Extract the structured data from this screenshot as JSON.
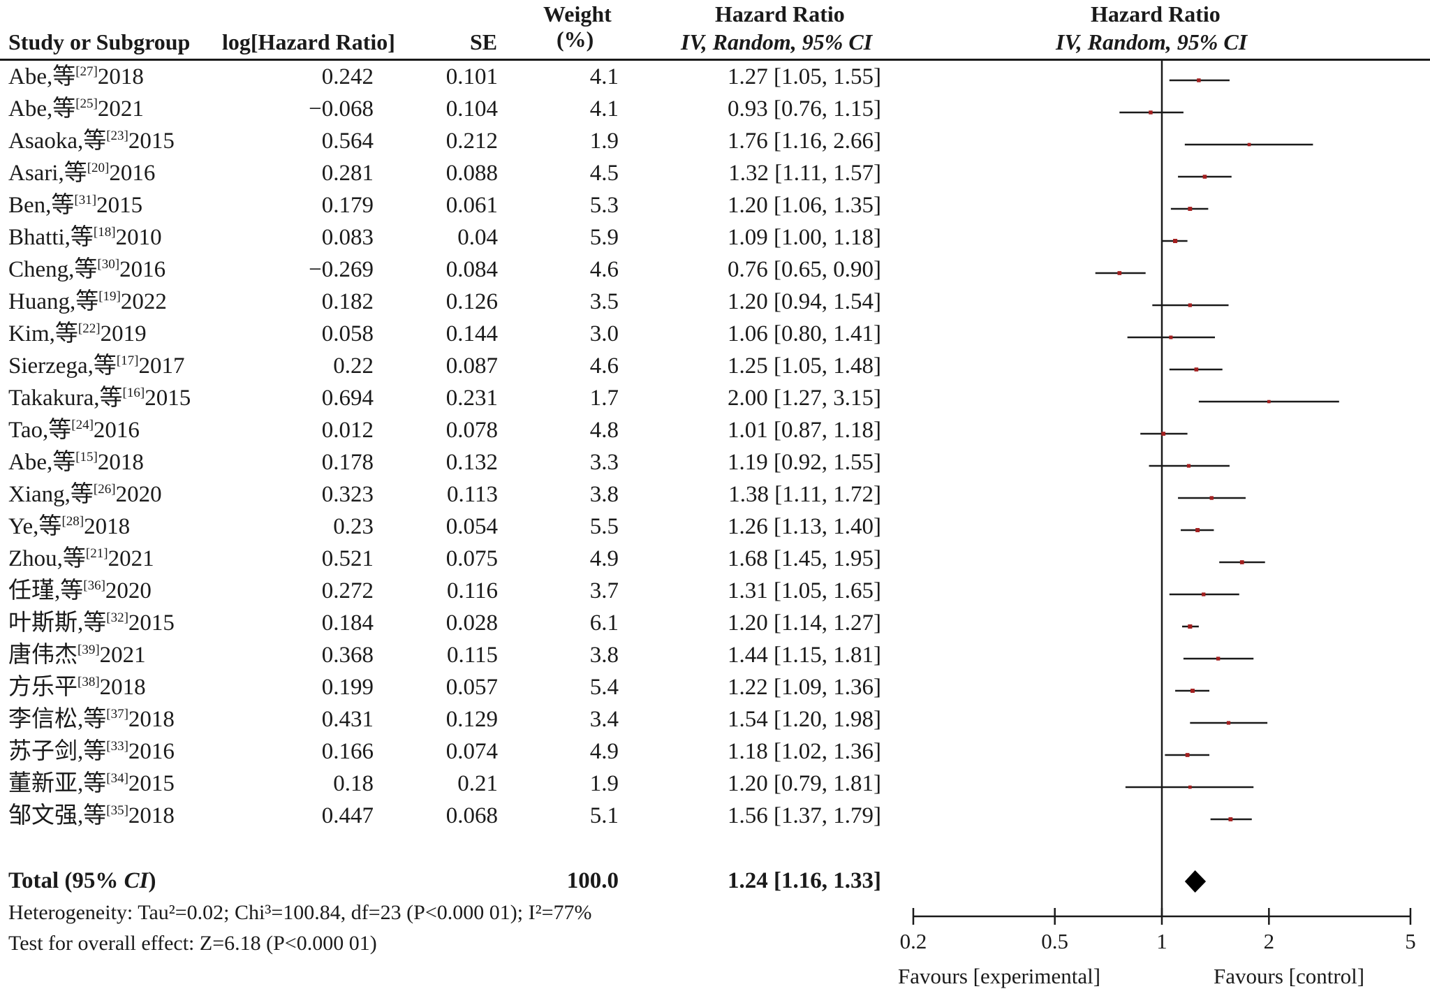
{
  "headers": {
    "study": "Study or Subgroup",
    "log_hr": "log[Hazard Ratio]",
    "se": "SE",
    "weight_line1": "Weight",
    "weight_line2": "(%)",
    "hr_line1": "Hazard Ratio",
    "hr_line2": "IV, Random, 95% CI",
    "plot_line1": "Hazard Ratio",
    "plot_line2": "IV, Random, 95% CI"
  },
  "studies": [
    {
      "name": "Abe,等",
      "ref": "[27]",
      "year": "2018",
      "log_hr": "0.242",
      "se": "0.101",
      "weight": "4.1",
      "hr_ci": "1.27 [1.05, 1.55]",
      "hr": 1.27,
      "lo": 1.05,
      "hi": 1.55
    },
    {
      "name": "Abe,等",
      "ref": "[25]",
      "year": "2021",
      "log_hr": "−0.068",
      "se": "0.104",
      "weight": "4.1",
      "hr_ci": "0.93 [0.76, 1.15]",
      "hr": 0.93,
      "lo": 0.76,
      "hi": 1.15
    },
    {
      "name": "Asaoka,等",
      "ref": "[23]",
      "year": "2015",
      "log_hr": "0.564",
      "se": "0.212",
      "weight": "1.9",
      "hr_ci": "1.76 [1.16, 2.66]",
      "hr": 1.76,
      "lo": 1.16,
      "hi": 2.66
    },
    {
      "name": "Asari,等",
      "ref": "[20]",
      "year": "2016",
      "log_hr": "0.281",
      "se": "0.088",
      "weight": "4.5",
      "hr_ci": "1.32 [1.11, 1.57]",
      "hr": 1.32,
      "lo": 1.11,
      "hi": 1.57
    },
    {
      "name": "Ben,等",
      "ref": "[31]",
      "year": "2015",
      "log_hr": "0.179",
      "se": "0.061",
      "weight": "5.3",
      "hr_ci": "1.20 [1.06, 1.35]",
      "hr": 1.2,
      "lo": 1.06,
      "hi": 1.35
    },
    {
      "name": "Bhatti,等",
      "ref": "[18]",
      "year": "2010",
      "log_hr": "0.083",
      "se": "0.04",
      "weight": "5.9",
      "hr_ci": "1.09 [1.00, 1.18]",
      "hr": 1.09,
      "lo": 1.0,
      "hi": 1.18
    },
    {
      "name": "Cheng,等",
      "ref": "[30]",
      "year": "2016",
      "log_hr": "−0.269",
      "se": "0.084",
      "weight": "4.6",
      "hr_ci": "0.76 [0.65, 0.90]",
      "hr": 0.76,
      "lo": 0.65,
      "hi": 0.9
    },
    {
      "name": "Huang,等",
      "ref": "[19]",
      "year": "2022",
      "log_hr": "0.182",
      "se": "0.126",
      "weight": "3.5",
      "hr_ci": "1.20 [0.94, 1.54]",
      "hr": 1.2,
      "lo": 0.94,
      "hi": 1.54
    },
    {
      "name": "Kim,等",
      "ref": "[22]",
      "year": "2019",
      "log_hr": "0.058",
      "se": "0.144",
      "weight": "3.0",
      "hr_ci": "1.06 [0.80, 1.41]",
      "hr": 1.06,
      "lo": 0.8,
      "hi": 1.41
    },
    {
      "name": "Sierzega,等",
      "ref": "[17]",
      "year": "2017",
      "log_hr": "0.22",
      "se": "0.087",
      "weight": "4.6",
      "hr_ci": "1.25 [1.05, 1.48]",
      "hr": 1.25,
      "lo": 1.05,
      "hi": 1.48
    },
    {
      "name": "Takakura,等",
      "ref": "[16]",
      "year": "2015",
      "log_hr": "0.694",
      "se": "0.231",
      "weight": "1.7",
      "hr_ci": "2.00 [1.27, 3.15]",
      "hr": 2.0,
      "lo": 1.27,
      "hi": 3.15
    },
    {
      "name": "Tao,等",
      "ref": "[24]",
      "year": "2016",
      "log_hr": "0.012",
      "se": "0.078",
      "weight": "4.8",
      "hr_ci": "1.01 [0.87, 1.18]",
      "hr": 1.01,
      "lo": 0.87,
      "hi": 1.18
    },
    {
      "name": "Abe,等",
      "ref": "[15]",
      "year": "2018",
      "log_hr": "0.178",
      "se": "0.132",
      "weight": "3.3",
      "hr_ci": "1.19 [0.92, 1.55]",
      "hr": 1.19,
      "lo": 0.92,
      "hi": 1.55
    },
    {
      "name": "Xiang,等",
      "ref": "[26]",
      "year": "2020",
      "log_hr": "0.323",
      "se": "0.113",
      "weight": "3.8",
      "hr_ci": "1.38 [1.11, 1.72]",
      "hr": 1.38,
      "lo": 1.11,
      "hi": 1.72
    },
    {
      "name": "Ye,等",
      "ref": "[28]",
      "year": "2018",
      "log_hr": "0.23",
      "se": "0.054",
      "weight": "5.5",
      "hr_ci": "1.26 [1.13, 1.40]",
      "hr": 1.26,
      "lo": 1.13,
      "hi": 1.4
    },
    {
      "name": "Zhou,等",
      "ref": "[21]",
      "year": "2021",
      "log_hr": "0.521",
      "se": "0.075",
      "weight": "4.9",
      "hr_ci": "1.68 [1.45, 1.95]",
      "hr": 1.68,
      "lo": 1.45,
      "hi": 1.95
    },
    {
      "name": "任瑾,等",
      "ref": "[36]",
      "year": "2020",
      "log_hr": "0.272",
      "se": "0.116",
      "weight": "3.7",
      "hr_ci": "1.31 [1.05, 1.65]",
      "hr": 1.31,
      "lo": 1.05,
      "hi": 1.65
    },
    {
      "name": "叶斯斯,等",
      "ref": "[32]",
      "year": "2015",
      "log_hr": "0.184",
      "se": "0.028",
      "weight": "6.1",
      "hr_ci": "1.20 [1.14, 1.27]",
      "hr": 1.2,
      "lo": 1.14,
      "hi": 1.27
    },
    {
      "name": "唐伟杰",
      "ref": "[39]",
      "year": "2021",
      "log_hr": "0.368",
      "se": "0.115",
      "weight": "3.8",
      "hr_ci": "1.44 [1.15, 1.81]",
      "hr": 1.44,
      "lo": 1.15,
      "hi": 1.81
    },
    {
      "name": "方乐平",
      "ref": "[38]",
      "year": "2018",
      "log_hr": "0.199",
      "se": "0.057",
      "weight": "5.4",
      "hr_ci": "1.22 [1.09, 1.36]",
      "hr": 1.22,
      "lo": 1.09,
      "hi": 1.36
    },
    {
      "name": "李信松,等",
      "ref": "[37]",
      "year": "2018",
      "log_hr": "0.431",
      "se": "0.129",
      "weight": "3.4",
      "hr_ci": "1.54 [1.20, 1.98]",
      "hr": 1.54,
      "lo": 1.2,
      "hi": 1.98
    },
    {
      "name": "苏子剑,等",
      "ref": "[33]",
      "year": "2016",
      "log_hr": "0.166",
      "se": "0.074",
      "weight": "4.9",
      "hr_ci": "1.18 [1.02, 1.36]",
      "hr": 1.18,
      "lo": 1.02,
      "hi": 1.36
    },
    {
      "name": "董新亚,等",
      "ref": "[34]",
      "year": "2015",
      "log_hr": "0.18",
      "se": "0.21",
      "weight": "1.9",
      "hr_ci": "1.20 [0.79, 1.81]",
      "hr": 1.2,
      "lo": 0.79,
      "hi": 1.81
    },
    {
      "name": "邹文强,等",
      "ref": "[35]",
      "year": "2018",
      "log_hr": "0.447",
      "se": "0.068",
      "weight": "5.1",
      "hr_ci": "1.56 [1.37, 1.79]",
      "hr": 1.56,
      "lo": 1.37,
      "hi": 1.79
    }
  ],
  "total": {
    "label_prefix": "Total (95% ",
    "label_ci": "CI",
    "label_suffix": ")",
    "weight": "100.0",
    "hr_ci": "1.24 [1.16, 1.33]",
    "hr": 1.24,
    "lo": 1.16,
    "hi": 1.33
  },
  "heterogeneity": "Heterogeneity: Tau²=0.02; Chi³=100.84, df=23 (P<0.000 01); I²=77%",
  "overall_effect": "Test for overall effect: Z=6.18 (P<0.000 01)",
  "chart_data": {
    "type": "forest",
    "scale": "log",
    "xlim": [
      0.2,
      5
    ],
    "reference_line": 1,
    "ticks": [
      0.2,
      0.5,
      1,
      2,
      5
    ],
    "tick_labels": [
      "0.2",
      "0.5",
      "1",
      "2",
      "5"
    ],
    "favours_left": "Favours [experimental]",
    "favours_right": "Favours [control]",
    "colors": {
      "point": "#a31f1f",
      "line": "#1a1a1a",
      "diamond": "#000000"
    }
  }
}
